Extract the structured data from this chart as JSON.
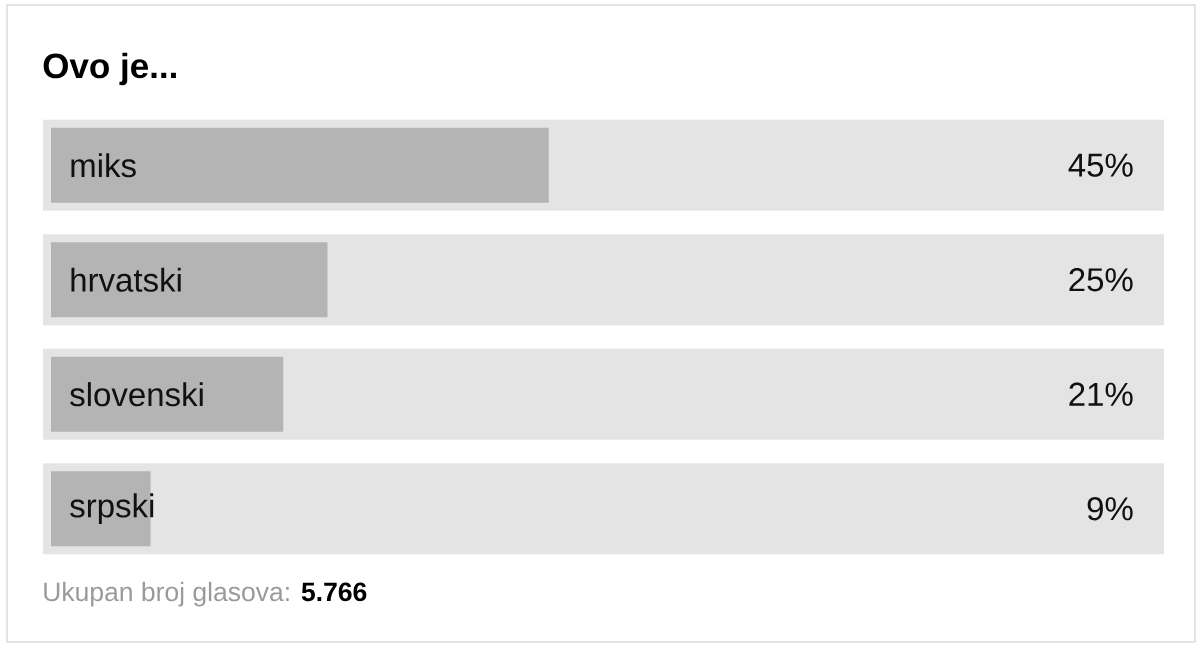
{
  "chart_data": {
    "type": "bar",
    "orientation": "horizontal",
    "title": "Ovo je...",
    "categories": [
      "miks",
      "hrvatski",
      "slovenski",
      "srpski"
    ],
    "values": [
      45,
      25,
      21,
      9
    ],
    "value_labels": [
      "45%",
      "25%",
      "21%",
      "9%"
    ],
    "color": "#b4b4b4",
    "tick_labels": "y",
    "annotations": [
      "Ukupan broj glasova: **5.766**"
    ]
  }
}
